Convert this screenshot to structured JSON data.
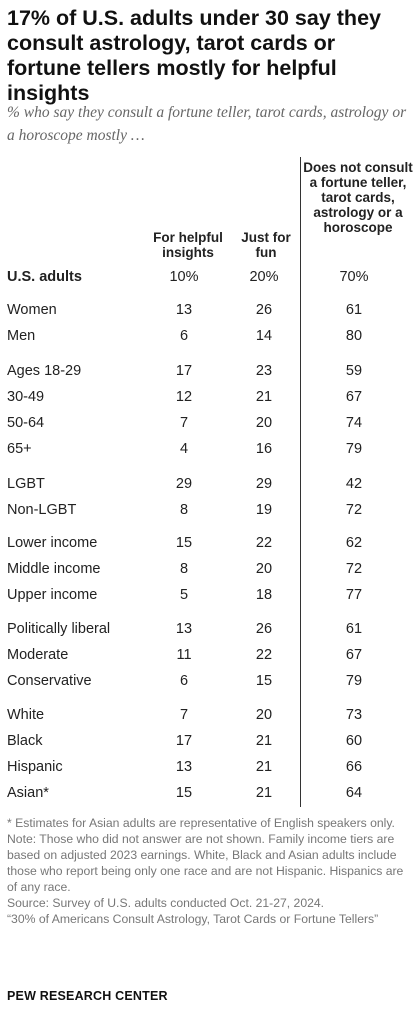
{
  "title": "17% of U.S. adults under 30 say they consult astrology, tarot cards or fortune tellers mostly for helpful insights",
  "subtitle": "% who say they consult a fortune teller, tarot cards, astrology or a horoscope mostly …",
  "chart_data": {
    "type": "table",
    "columns": [
      "For helpful insights",
      "Just for fun",
      "Does not consult a fortune teller, tarot cards, astrology or a horoscope"
    ],
    "rows": [
      {
        "label": "U.S. adults",
        "values": [
          "10%",
          "20%",
          "70%"
        ]
      },
      {
        "label": "Women",
        "values": [
          "13",
          "26",
          "61"
        ]
      },
      {
        "label": "Men",
        "values": [
          "6",
          "14",
          "80"
        ]
      },
      {
        "label": "Ages 18-29",
        "values": [
          "17",
          "23",
          "59"
        ]
      },
      {
        "label": "30-49",
        "values": [
          "12",
          "21",
          "67"
        ]
      },
      {
        "label": "50-64",
        "values": [
          "7",
          "20",
          "74"
        ]
      },
      {
        "label": "65+",
        "values": [
          "4",
          "16",
          "79"
        ]
      },
      {
        "label": "LGBT",
        "values": [
          "29",
          "29",
          "42"
        ]
      },
      {
        "label": "Non-LGBT",
        "values": [
          "8",
          "19",
          "72"
        ]
      },
      {
        "label": "Lower income",
        "values": [
          "15",
          "22",
          "62"
        ]
      },
      {
        "label": "Middle income",
        "values": [
          "8",
          "20",
          "72"
        ]
      },
      {
        "label": "Upper income",
        "values": [
          "5",
          "18",
          "77"
        ]
      },
      {
        "label": "Politically liberal",
        "values": [
          "13",
          "26",
          "61"
        ]
      },
      {
        "label": "Moderate",
        "values": [
          "11",
          "22",
          "67"
        ]
      },
      {
        "label": "Conservative",
        "values": [
          "6",
          "15",
          "79"
        ]
      },
      {
        "label": "White",
        "values": [
          "7",
          "20",
          "73"
        ]
      },
      {
        "label": "Black",
        "values": [
          "17",
          "21",
          "60"
        ]
      },
      {
        "label": "Hispanic",
        "values": [
          "13",
          "21",
          "66"
        ]
      },
      {
        "label": "Asian*",
        "values": [
          "15",
          "21",
          "64"
        ]
      }
    ]
  },
  "footnotes": {
    "asterisk": "* Estimates for Asian adults are representative of English speakers only.",
    "note": "Note: Those who did not answer are not shown. Family income tiers are based on adjusted 2023 earnings. White, Black and Asian adults include those who report being only one race and are not Hispanic. Hispanics are of any race.",
    "source": "Source: Survey of U.S. adults conducted Oct. 21-27, 2024.",
    "report": "“30% of Americans Consult Astrology, Tarot Cards or Fortune Tellers”"
  },
  "organization": "PEW RESEARCH CENTER"
}
